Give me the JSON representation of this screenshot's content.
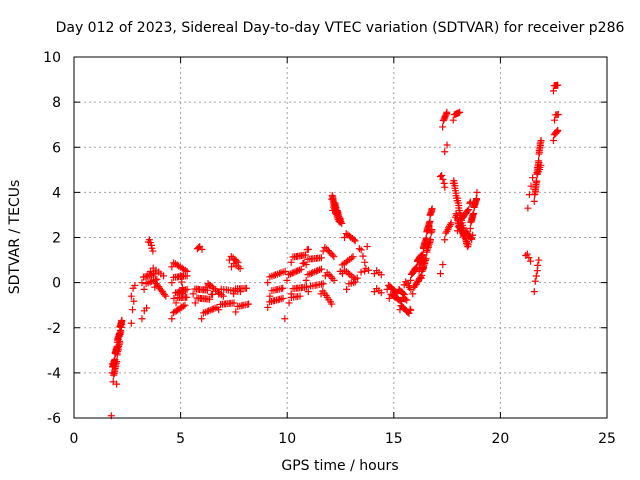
{
  "chart_data": {
    "type": "scatter",
    "title": "Day 012 of 2023, Sidereal Day-to-day VTEC variation (SDTVAR) for receiver p286",
    "xlabel": "GPS time / hours",
    "ylabel": "SDTVAR / TECUs",
    "xlim": [
      0,
      25
    ],
    "ylim": [
      -6,
      10
    ],
    "xticks": [
      "0",
      "5",
      "10",
      "15",
      "20",
      "25"
    ],
    "yticks": [
      "-6",
      "-4",
      "-2",
      "0",
      "2",
      "4",
      "6",
      "8",
      "10"
    ],
    "grid": true,
    "marker": "plus",
    "color": "#ff0000",
    "segments": [
      {
        "x0": 1.8,
        "x1": 2.25,
        "y0": -3.9,
        "y1": -1.6,
        "n": 36
      },
      {
        "x0": 1.85,
        "x1": 2.2,
        "y0": -4.3,
        "y1": -2.2,
        "n": 22
      },
      {
        "x0": 2.0,
        "x1": 2.25,
        "y0": -2.9,
        "y1": -1.8,
        "n": 8
      },
      {
        "x0": 2.7,
        "x1": 2.8,
        "y0": -1.7,
        "y1": -0.9,
        "n": 3
      },
      {
        "x0": 2.7,
        "x1": 2.85,
        "y0": -0.5,
        "y1": -0.2,
        "n": 3
      },
      {
        "x0": 3.2,
        "x1": 3.4,
        "y0": -1.5,
        "y1": -1.2,
        "n": 3
      },
      {
        "x0": 3.2,
        "x1": 3.8,
        "y0": 0.1,
        "y1": 0.5,
        "n": 10
      },
      {
        "x0": 3.3,
        "x1": 3.9,
        "y0": -0.2,
        "y1": 0.2,
        "n": 8
      },
      {
        "x0": 3.5,
        "x1": 3.7,
        "y0": 1.9,
        "y1": 1.4,
        "n": 6
      },
      {
        "x0": 3.6,
        "x1": 4.2,
        "y0": 0.6,
        "y1": 0.3,
        "n": 6
      },
      {
        "x0": 3.8,
        "x1": 4.3,
        "y0": -0.1,
        "y1": -0.5,
        "n": 10
      },
      {
        "x0": 4.6,
        "x1": 5.2,
        "y0": -1.5,
        "y1": -0.9,
        "n": 10
      },
      {
        "x0": 4.6,
        "x1": 5.3,
        "y0": 0.8,
        "y1": 0.6,
        "n": 10
      },
      {
        "x0": 4.6,
        "x1": 5.3,
        "y0": 0.1,
        "y1": 0.4,
        "n": 10
      },
      {
        "x0": 4.7,
        "x1": 5.3,
        "y0": -0.6,
        "y1": -0.2,
        "n": 10
      },
      {
        "x0": 4.8,
        "x1": 5.3,
        "y0": -0.8,
        "y1": -0.6,
        "n": 8
      },
      {
        "x0": 5.0,
        "x1": 5.1,
        "y0": 0.4,
        "y1": -0.5,
        "n": 5
      },
      {
        "x0": 5.6,
        "x1": 6.4,
        "y0": -0.4,
        "y1": -0.2,
        "n": 12
      },
      {
        "x0": 5.7,
        "x1": 6.5,
        "y0": -0.8,
        "y1": -0.6,
        "n": 12
      },
      {
        "x0": 5.8,
        "x1": 6.0,
        "y0": 1.6,
        "y1": 1.4,
        "n": 3
      },
      {
        "x0": 6.0,
        "x1": 6.7,
        "y0": -1.5,
        "y1": -1.0,
        "n": 10
      },
      {
        "x0": 6.2,
        "x1": 7.0,
        "y0": -0.1,
        "y1": -0.5,
        "n": 10
      },
      {
        "x0": 6.8,
        "x1": 7.5,
        "y0": -1.1,
        "y1": -0.8,
        "n": 10
      },
      {
        "x0": 6.8,
        "x1": 7.8,
        "y0": -0.4,
        "y1": -0.3,
        "n": 10
      },
      {
        "x0": 7.3,
        "x1": 7.7,
        "y0": 1.1,
        "y1": 0.9,
        "n": 6
      },
      {
        "x0": 7.4,
        "x1": 7.8,
        "y0": 0.8,
        "y1": 0.6,
        "n": 5
      },
      {
        "x0": 7.5,
        "x1": 8.1,
        "y0": -0.4,
        "y1": -0.2,
        "n": 8
      },
      {
        "x0": 7.6,
        "x1": 8.2,
        "y0": -1.2,
        "y1": -0.9,
        "n": 8
      },
      {
        "x0": 9.1,
        "x1": 9.9,
        "y0": 0.1,
        "y1": 0.6,
        "n": 10
      },
      {
        "x0": 9.1,
        "x1": 9.8,
        "y0": -1.0,
        "y1": -0.6,
        "n": 10
      },
      {
        "x0": 9.2,
        "x1": 9.8,
        "y0": -0.5,
        "y1": -0.2,
        "n": 8
      },
      {
        "x0": 9.9,
        "x1": 9.95,
        "y0": -1.5,
        "y1": -1.5,
        "n": 1
      },
      {
        "x0": 10.0,
        "x1": 10.8,
        "y0": 0.2,
        "y1": 0.8,
        "n": 12
      },
      {
        "x0": 10.2,
        "x1": 11.0,
        "y0": 1.0,
        "y1": 1.4,
        "n": 12
      },
      {
        "x0": 10.2,
        "x1": 10.9,
        "y0": -0.4,
        "y1": -0.1,
        "n": 10
      },
      {
        "x0": 10.1,
        "x1": 10.6,
        "y0": -0.8,
        "y1": -0.6,
        "n": 6
      },
      {
        "x0": 10.9,
        "x1": 11.6,
        "y0": 0.9,
        "y1": 1.2,
        "n": 10
      },
      {
        "x0": 10.9,
        "x1": 11.6,
        "y0": 0.2,
        "y1": 0.7,
        "n": 10
      },
      {
        "x0": 11.0,
        "x1": 11.7,
        "y0": -0.3,
        "y1": 0.0,
        "n": 8
      },
      {
        "x0": 11.6,
        "x1": 12.1,
        "y0": -0.4,
        "y1": -0.9,
        "n": 8
      },
      {
        "x0": 11.7,
        "x1": 12.2,
        "y0": 1.5,
        "y1": 1.2,
        "n": 8
      },
      {
        "x0": 11.8,
        "x1": 12.2,
        "y0": 0.4,
        "y1": 0.1,
        "n": 6
      },
      {
        "x0": 12.1,
        "x1": 12.5,
        "y0": 3.8,
        "y1": 2.7,
        "n": 30
      },
      {
        "x0": 12.15,
        "x1": 12.55,
        "y0": 3.3,
        "y1": 2.6,
        "n": 14
      },
      {
        "x0": 12.5,
        "x1": 13.1,
        "y0": 0.6,
        "y1": 1.2,
        "n": 8
      },
      {
        "x0": 12.6,
        "x1": 13.2,
        "y0": 0.5,
        "y1": 0.2,
        "n": 8
      },
      {
        "x0": 12.7,
        "x1": 13.2,
        "y0": 2.1,
        "y1": 1.9,
        "n": 8
      },
      {
        "x0": 12.8,
        "x1": 13.2,
        "y0": -0.2,
        "y1": 0.0,
        "n": 5
      },
      {
        "x0": 13.4,
        "x1": 13.7,
        "y0": 1.6,
        "y1": 0.6,
        "n": 5
      },
      {
        "x0": 13.3,
        "x1": 13.8,
        "y0": 0.3,
        "y1": 0.5,
        "n": 4
      },
      {
        "x0": 14.1,
        "x1": 14.4,
        "y0": 0.5,
        "y1": 0.3,
        "n": 4
      },
      {
        "x0": 14.1,
        "x1": 14.4,
        "y0": -0.3,
        "y1": -0.5,
        "n": 4
      },
      {
        "x0": 14.7,
        "x1": 15.5,
        "y0": -0.2,
        "y1": -0.5,
        "n": 16
      },
      {
        "x0": 14.8,
        "x1": 15.6,
        "y0": -0.6,
        "y1": -0.8,
        "n": 14
      },
      {
        "x0": 15.3,
        "x1": 15.8,
        "y0": -1.1,
        "y1": -1.3,
        "n": 12
      },
      {
        "x0": 15.5,
        "x1": 15.8,
        "y0": 0.0,
        "y1": -0.3,
        "n": 6
      },
      {
        "x0": 15.8,
        "x1": 16.3,
        "y0": 0.2,
        "y1": 1.3,
        "n": 18
      },
      {
        "x0": 15.9,
        "x1": 16.4,
        "y0": -0.4,
        "y1": 0.6,
        "n": 12
      },
      {
        "x0": 16.2,
        "x1": 16.8,
        "y0": 0.6,
        "y1": 3.3,
        "n": 34
      },
      {
        "x0": 16.3,
        "x1": 16.8,
        "y0": 0.3,
        "y1": 2.3,
        "n": 22
      },
      {
        "x0": 17.2,
        "x1": 17.4,
        "y0": 4.8,
        "y1": 4.2,
        "n": 5
      },
      {
        "x0": 17.3,
        "x1": 17.5,
        "y0": 7.0,
        "y1": 7.6,
        "n": 8
      },
      {
        "x0": 17.4,
        "x1": 17.5,
        "y0": 5.9,
        "y1": 6.0,
        "n": 2
      },
      {
        "x0": 17.2,
        "x1": 17.3,
        "y0": 0.5,
        "y1": 0.7,
        "n": 2
      },
      {
        "x0": 17.4,
        "x1": 17.7,
        "y0": 2.0,
        "y1": 2.7,
        "n": 8
      },
      {
        "x0": 17.8,
        "x1": 18.1,
        "y0": 7.3,
        "y1": 7.6,
        "n": 8
      },
      {
        "x0": 17.8,
        "x1": 18.3,
        "y0": 4.5,
        "y1": 2.2,
        "n": 28
      },
      {
        "x0": 17.9,
        "x1": 18.5,
        "y0": 3.0,
        "y1": 1.6,
        "n": 30
      },
      {
        "x0": 18.0,
        "x1": 18.7,
        "y0": 2.4,
        "y1": 2.0,
        "n": 20
      },
      {
        "x0": 18.1,
        "x1": 18.6,
        "y0": 2.6,
        "y1": 3.5,
        "n": 12
      },
      {
        "x0": 18.6,
        "x1": 18.9,
        "y0": 2.5,
        "y1": 3.9,
        "n": 20
      },
      {
        "x0": 21.2,
        "x1": 21.4,
        "y0": 1.3,
        "y1": 0.9,
        "n": 4
      },
      {
        "x0": 21.3,
        "x1": 21.5,
        "y0": 3.4,
        "y1": 4.6,
        "n": 4
      },
      {
        "x0": 21.6,
        "x1": 21.8,
        "y0": -0.3,
        "y1": 1.0,
        "n": 6
      },
      {
        "x0": 21.6,
        "x1": 21.9,
        "y0": 3.7,
        "y1": 6.4,
        "n": 28
      },
      {
        "x0": 21.7,
        "x1": 21.9,
        "y0": 4.6,
        "y1": 5.2,
        "n": 6
      },
      {
        "x0": 22.5,
        "x1": 22.7,
        "y0": 6.4,
        "y1": 6.8,
        "n": 8
      },
      {
        "x0": 22.55,
        "x1": 22.7,
        "y0": 7.3,
        "y1": 7.4,
        "n": 4
      },
      {
        "x0": 22.5,
        "x1": 22.7,
        "y0": 8.6,
        "y1": 8.8,
        "n": 8
      }
    ],
    "points": [
      {
        "x": 1.75,
        "y": -5.9
      },
      {
        "x": 1.8,
        "y": -3.6
      },
      {
        "x": 2.0,
        "y": -4.5
      },
      {
        "x": 5.85,
        "y": 1.55
      },
      {
        "x": 13.75,
        "y": 1.6
      }
    ]
  }
}
